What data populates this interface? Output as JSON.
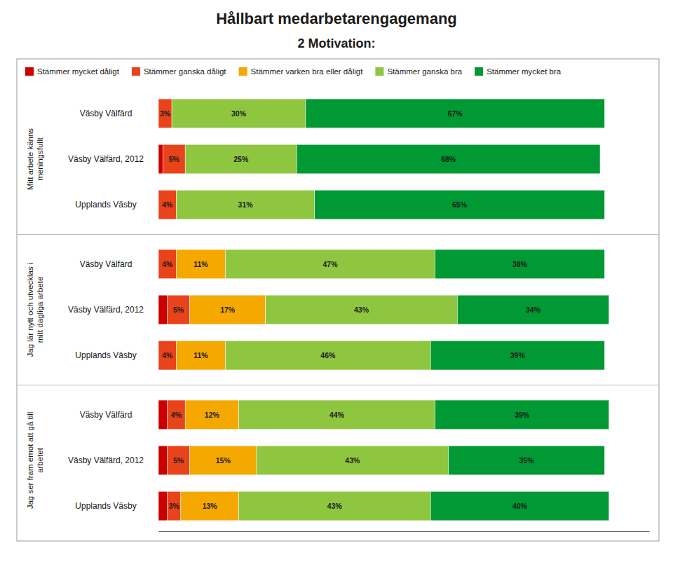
{
  "chart_data": {
    "type": "bar",
    "orientation": "horizontal",
    "stacked": true,
    "title": "Hållbart medarbetarengagemang",
    "subtitle": "2 Motivation:",
    "groups": [
      {
        "label": "Mitt arbete känns\nmeningsfullt",
        "categories": [
          "Väsby Välfärd",
          "Väsby Välfärd, 2012",
          "Upplands Väsby"
        ]
      },
      {
        "label": "Jag lär nytt och utvecklas i\nmitt dagliga arbete",
        "categories": [
          "Väsby Välfärd",
          "Väsby Välfärd, 2012",
          "Upplands Väsby"
        ]
      },
      {
        "label": "Jag ser fram emot att gå till\narbetet",
        "categories": [
          "Väsby Välfärd",
          "Väsby Välfärd, 2012",
          "Upplands Väsby"
        ]
      }
    ],
    "series": [
      {
        "name": "Stämmer mycket dåligt",
        "color": "#cc0000",
        "values": [
          0,
          1,
          0,
          0,
          2,
          0,
          2,
          2,
          2
        ],
        "value_labels": [
          null,
          null,
          null,
          null,
          null,
          null,
          null,
          null,
          null
        ]
      },
      {
        "name": "Stämmer ganska dåligt",
        "color": "#e8431a",
        "values": [
          3,
          5,
          4,
          4,
          5,
          4,
          4,
          5,
          3
        ],
        "value_labels": [
          "3%",
          "5%",
          "4%",
          "4%",
          "5%",
          "4%",
          "4%",
          "5%",
          "3%"
        ]
      },
      {
        "name": "Stämmer varken bra eller dåligt",
        "color": "#f5a800",
        "values": [
          0,
          0,
          0,
          11,
          17,
          11,
          12,
          15,
          13
        ],
        "value_labels": [
          null,
          null,
          null,
          "11%",
          "17%",
          "11%",
          "12%",
          "15%",
          "13%"
        ]
      },
      {
        "name": "Stämmer ganska bra",
        "color": "#8ec63f",
        "values": [
          30,
          25,
          31,
          47,
          43,
          46,
          44,
          43,
          43
        ],
        "value_labels": [
          "30%",
          "25%",
          "31%",
          "47%",
          "43%",
          "46%",
          "44%",
          "43%",
          "43%"
        ]
      },
      {
        "name": "Stämmer mycket bra",
        "color": "#009933",
        "values": [
          67,
          68,
          65,
          38,
          34,
          39,
          39,
          35,
          40
        ],
        "value_labels": [
          "67%",
          "68%",
          "65%",
          "38%",
          "34%",
          "39%",
          "39%",
          "35%",
          "40%"
        ]
      }
    ],
    "xlim": [
      0,
      110
    ],
    "tick_labels": false,
    "data_labels": true,
    "legend": "top-left"
  }
}
